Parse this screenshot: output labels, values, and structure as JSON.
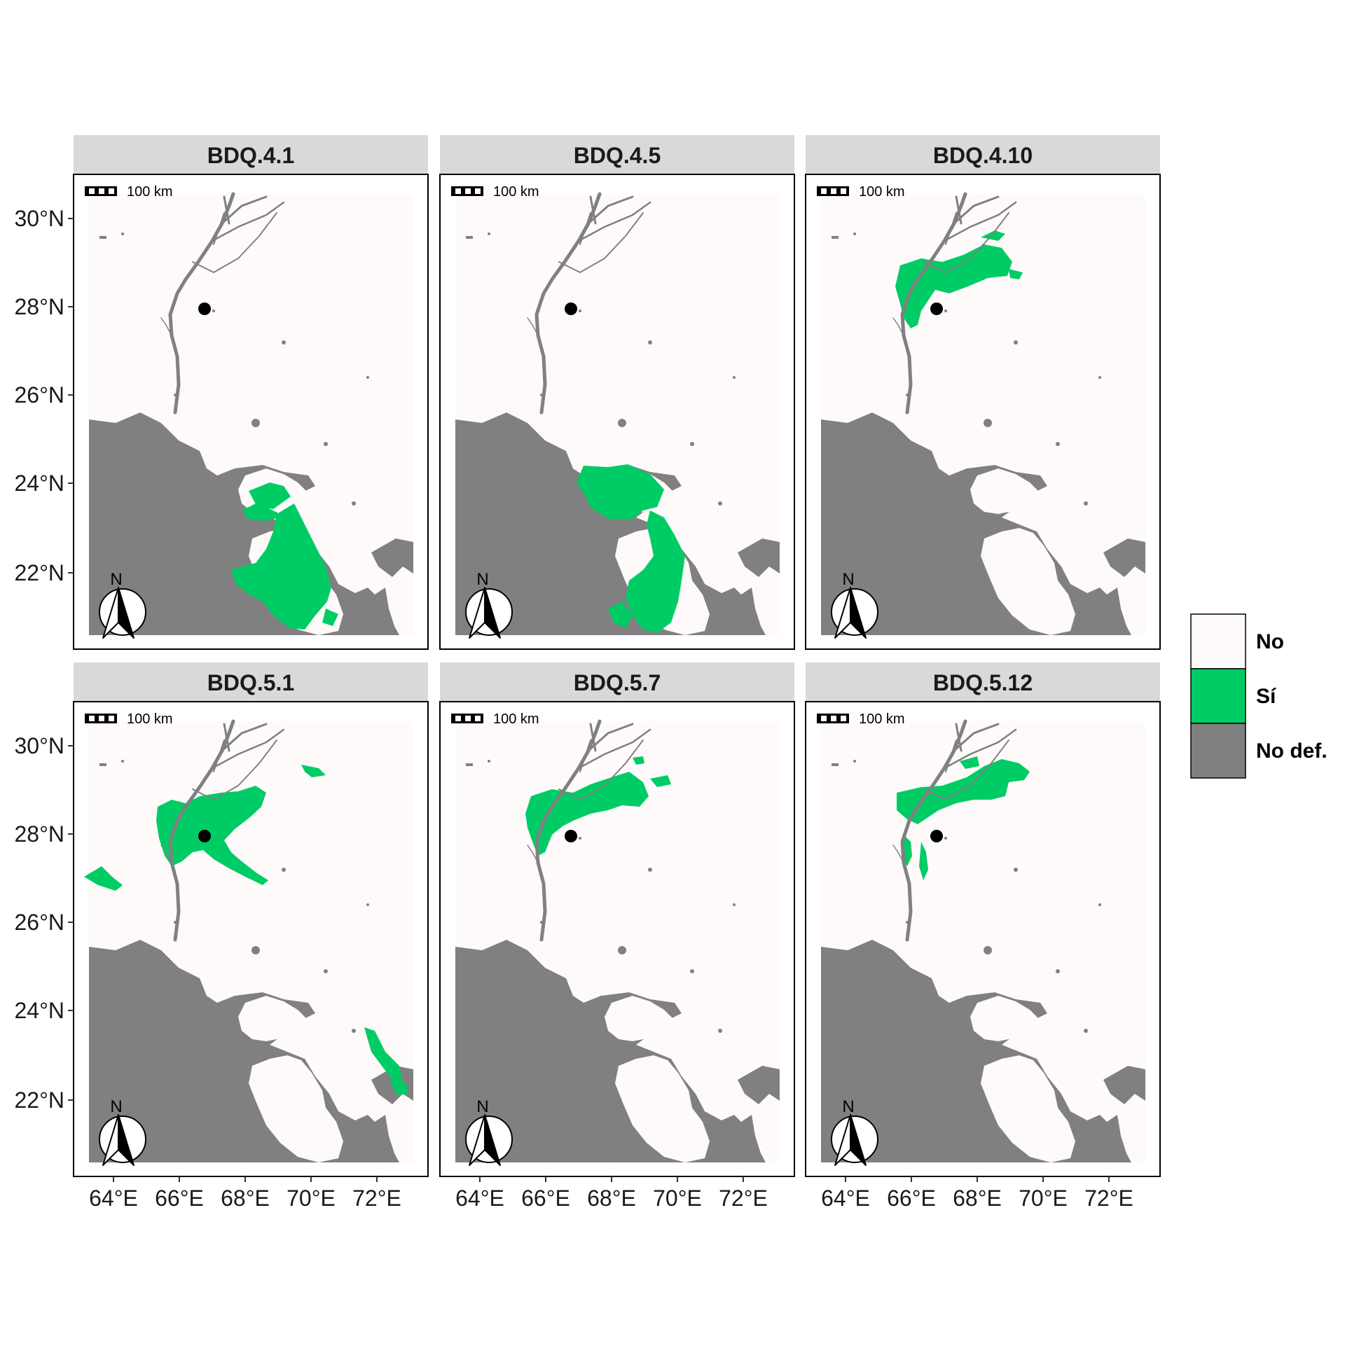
{
  "map": {
    "panels": [
      {
        "id": "p1",
        "title": "BDQ.4.1",
        "green": "south1"
      },
      {
        "id": "p2",
        "title": "BDQ.4.5",
        "green": "south2"
      },
      {
        "id": "p3",
        "title": "BDQ.4.10",
        "green": "north1"
      },
      {
        "id": "p4",
        "title": "BDQ.5.1",
        "green": "mix51"
      },
      {
        "id": "p5",
        "title": "BDQ.5.7",
        "green": "north2"
      },
      {
        "id": "p6",
        "title": "BDQ.5.12",
        "green": "north3"
      }
    ],
    "lat_labels": [
      "30°N",
      "28°N",
      "26°N",
      "24°N",
      "22°N"
    ],
    "lon_labels": [
      "64°E",
      "66°E",
      "68°E",
      "70°E",
      "72°E"
    ],
    "scale_bar_label": "100 km",
    "north_label": "N",
    "point_marker": {
      "name": "study-site",
      "lon": 66.8,
      "lat": 27.8
    },
    "legend": [
      {
        "label": "No",
        "color": "#FFFAFA"
      },
      {
        "label": "Sí",
        "color": "#00CC66"
      },
      {
        "label": "No def.",
        "color": "#808080"
      }
    ],
    "colors": {
      "sea": "#808080",
      "land": "#FFFAFA",
      "present": "#00CC66",
      "strip": "#D9D9D9",
      "river": "#808080"
    }
  }
}
